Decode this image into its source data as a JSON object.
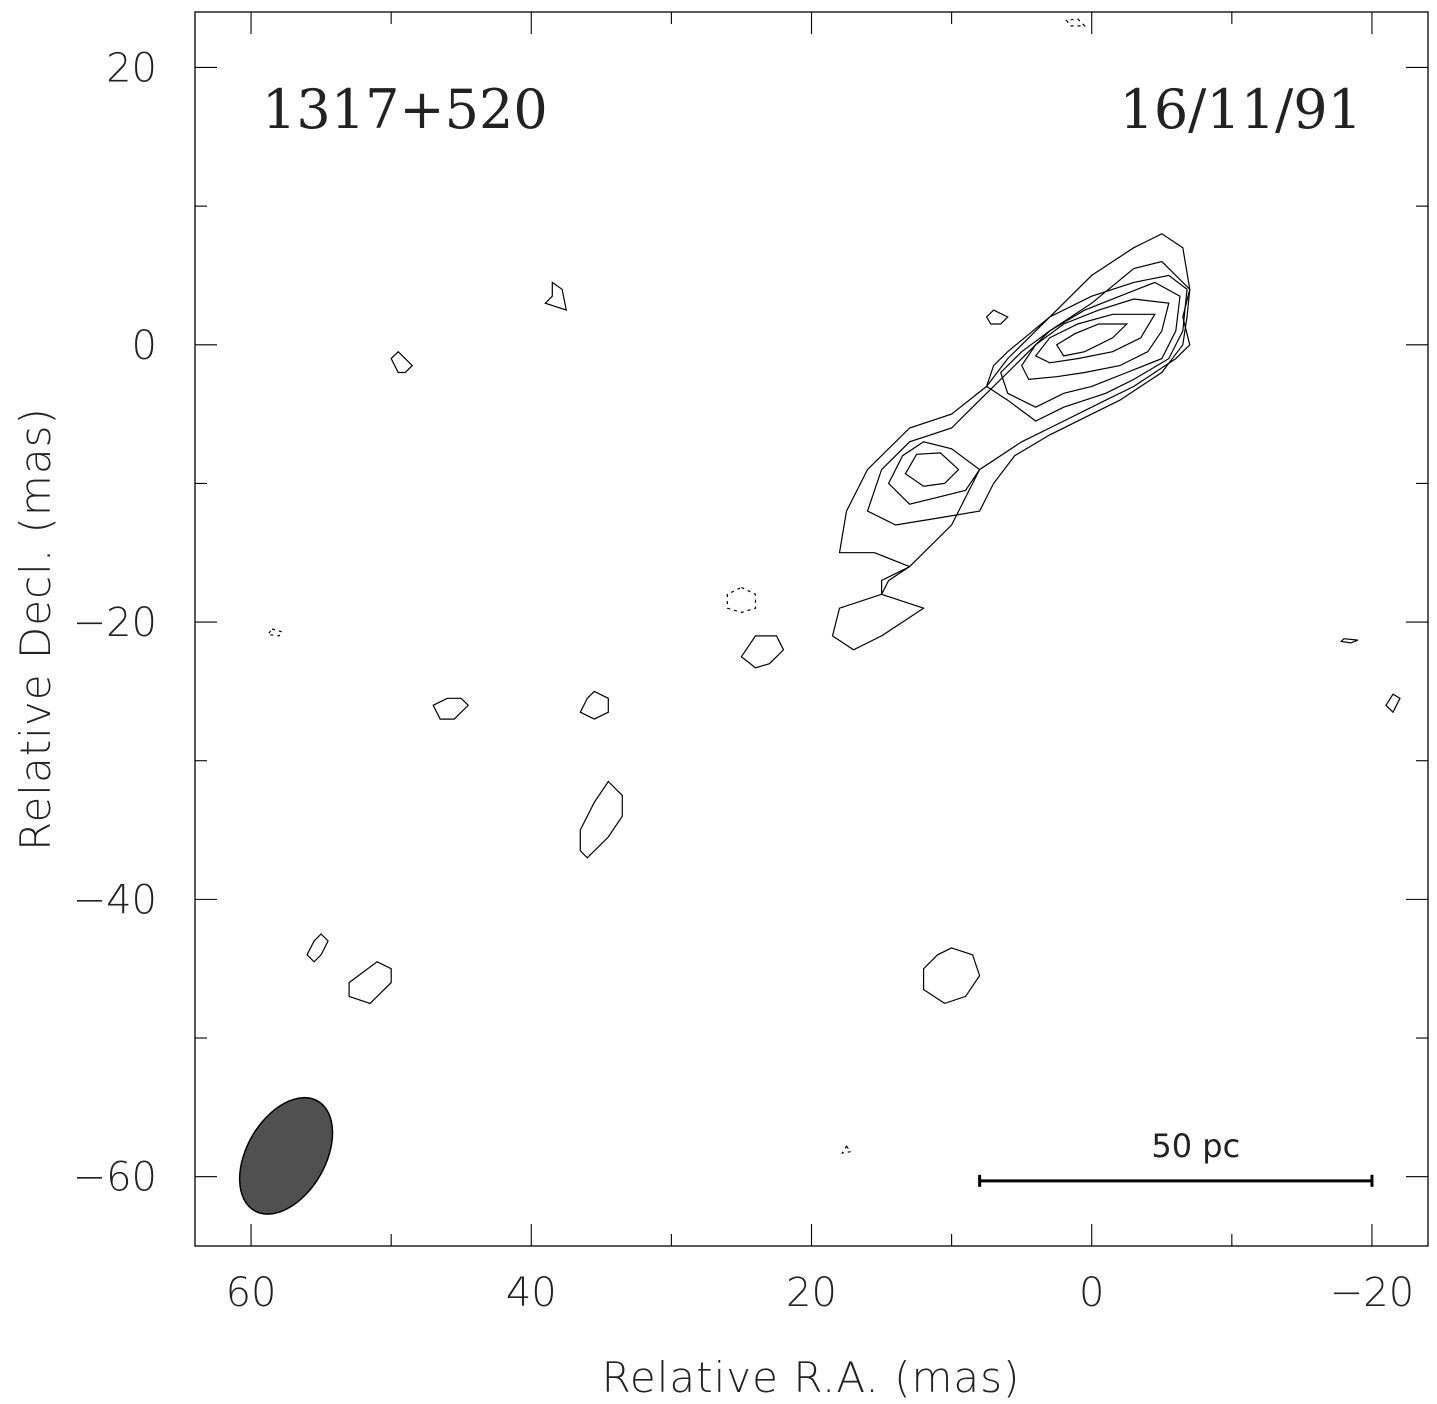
{
  "chart_data": {
    "type": "contour",
    "source_name": "1317+520",
    "epoch": "16/11/91",
    "xlabel": "Relative R.A. (mas)",
    "ylabel": "Relative Decl. (mas)",
    "xlim": [
      64,
      -24
    ],
    "ylim": [
      -65,
      24
    ],
    "x_ticks": [
      60,
      40,
      20,
      0,
      -20
    ],
    "x_tick_labels": [
      "60",
      "40",
      "20",
      "0",
      "−20"
    ],
    "y_ticks": [
      20,
      0,
      -20,
      -40,
      -60
    ],
    "y_tick_labels": [
      "20",
      "0",
      "−20",
      "−40",
      "−60"
    ],
    "x_minor_step": 10,
    "y_minor_step": 10,
    "scale_bar": {
      "label": "50 pc",
      "x_from": 8,
      "x_to": -20,
      "y": -60.3
    },
    "beam": {
      "x": 57.5,
      "y": -58.5,
      "major_mas": 7,
      "minor_mas": 3.5,
      "pa_deg": 30
    },
    "contours": [
      {
        "level": 1,
        "kind": "positive",
        "points": [
          [
            -7,
            4
          ],
          [
            -6.5,
            2
          ],
          [
            -7,
            0
          ],
          [
            -6,
            -1
          ],
          [
            -3,
            -3
          ],
          [
            -1,
            -4
          ],
          [
            3,
            -6
          ],
          [
            5,
            -7
          ],
          [
            8,
            -9
          ],
          [
            10,
            -13
          ],
          [
            13,
            -16
          ],
          [
            15,
            -17
          ],
          [
            15,
            -18
          ],
          [
            12,
            -19
          ],
          [
            15,
            -21
          ],
          [
            17,
            -22
          ],
          [
            18.5,
            -21
          ],
          [
            18,
            -19
          ],
          [
            15,
            -18
          ],
          [
            14.5,
            -17
          ],
          [
            13,
            -16
          ],
          [
            15.5,
            -15
          ],
          [
            18,
            -15
          ],
          [
            17.5,
            -12
          ],
          [
            16,
            -9
          ],
          [
            14,
            -7
          ],
          [
            13,
            -6
          ],
          [
            10,
            -5
          ],
          [
            7.5,
            -3
          ],
          [
            6,
            -1
          ],
          [
            5,
            0
          ],
          [
            2,
            3
          ],
          [
            0,
            5
          ],
          [
            -3,
            7
          ],
          [
            -5,
            8
          ],
          [
            -6.5,
            7
          ]
        ]
      },
      {
        "level": 2,
        "kind": "positive",
        "points": [
          [
            -7,
            4
          ],
          [
            -6.8,
            2
          ],
          [
            -6.5,
            0
          ],
          [
            -5,
            -2
          ],
          [
            -2,
            -4
          ],
          [
            0,
            -5
          ],
          [
            3,
            -6.5
          ],
          [
            5.5,
            -8
          ],
          [
            7,
            -10
          ],
          [
            8,
            -12
          ],
          [
            11,
            -12.5
          ],
          [
            14,
            -13
          ],
          [
            16,
            -12
          ],
          [
            15,
            -9
          ],
          [
            13,
            -7
          ],
          [
            10,
            -6
          ],
          [
            8,
            -4
          ],
          [
            6,
            -2
          ],
          [
            3,
            1
          ],
          [
            0,
            3
          ],
          [
            -3,
            5.5
          ],
          [
            -5,
            6
          ]
        ]
      },
      {
        "level": 3,
        "kind": "positive",
        "points": [
          [
            -6.8,
            4
          ],
          [
            -6.5,
            1
          ],
          [
            -5.5,
            -1
          ],
          [
            -3,
            -2.5
          ],
          [
            -1,
            -3.5
          ],
          [
            2,
            -4.5
          ],
          [
            4,
            -5.5
          ],
          [
            6,
            -4
          ],
          [
            7.5,
            -3
          ],
          [
            7,
            -1.5
          ],
          [
            6,
            -0.5
          ],
          [
            3,
            2
          ],
          [
            0,
            3.5
          ],
          [
            -3,
            4.5
          ],
          [
            -5.5,
            5
          ]
        ]
      },
      {
        "level": 3,
        "kind": "positive",
        "points": [
          [
            8,
            -9
          ],
          [
            9,
            -10.5
          ],
          [
            11,
            -11
          ],
          [
            13,
            -11.5
          ],
          [
            14.5,
            -10
          ],
          [
            13.5,
            -8
          ],
          [
            12,
            -7
          ],
          [
            10,
            -7.5
          ]
        ]
      },
      {
        "level": 4,
        "kind": "positive",
        "points": [
          [
            -6.3,
            3.5
          ],
          [
            -6,
            1
          ],
          [
            -5,
            -1
          ],
          [
            -2.5,
            -2
          ],
          [
            0,
            -3
          ],
          [
            2,
            -3.5
          ],
          [
            4,
            -4.5
          ],
          [
            6,
            -3.5
          ],
          [
            6.5,
            -2
          ],
          [
            5,
            -0.5
          ],
          [
            3,
            1
          ],
          [
            0.5,
            2.5
          ],
          [
            -2,
            3.5
          ],
          [
            -4.5,
            4.5
          ]
        ]
      },
      {
        "level": 4,
        "kind": "positive",
        "points": [
          [
            9.5,
            -9
          ],
          [
            10.5,
            -10
          ],
          [
            12,
            -10.2
          ],
          [
            13.3,
            -9.3
          ],
          [
            12.5,
            -7.9
          ],
          [
            10.8,
            -7.8
          ]
        ]
      },
      {
        "level": 5,
        "kind": "positive",
        "points": [
          [
            -5.5,
            3
          ],
          [
            -5,
            1
          ],
          [
            -4,
            -0.5
          ],
          [
            -2,
            -1.5
          ],
          [
            0.5,
            -2
          ],
          [
            2.5,
            -2.3
          ],
          [
            4.5,
            -2.5
          ],
          [
            5,
            -1.5
          ],
          [
            4,
            0
          ],
          [
            2,
            1.5
          ],
          [
            -0.5,
            2.5
          ],
          [
            -3,
            3.3
          ]
        ]
      },
      {
        "level": 6,
        "kind": "positive",
        "points": [
          [
            -4.5,
            2.2
          ],
          [
            -3.5,
            0.5
          ],
          [
            -1.5,
            -0.5
          ],
          [
            1,
            -1
          ],
          [
            3,
            -1.3
          ],
          [
            4,
            -0.8
          ],
          [
            3,
            0.5
          ],
          [
            1,
            1.5
          ],
          [
            -1.5,
            2.2
          ]
        ]
      },
      {
        "level": 7,
        "kind": "positive",
        "points": [
          [
            -2.5,
            1.5
          ],
          [
            -1.5,
            0.5
          ],
          [
            0.5,
            -0.5
          ],
          [
            2,
            -0.8
          ],
          [
            2.5,
            0
          ],
          [
            1.2,
            0.8
          ],
          [
            -0.5,
            1.5
          ]
        ]
      },
      {
        "level": 1,
        "kind": "positive",
        "points": [
          [
            38.5,
            4.5
          ],
          [
            38.5,
            3.5
          ],
          [
            39,
            3
          ],
          [
            37.5,
            2.5
          ],
          [
            37.8,
            4
          ]
        ]
      },
      {
        "level": 1,
        "kind": "positive",
        "points": [
          [
            50,
            -1
          ],
          [
            49.5,
            -0.5
          ],
          [
            49,
            -1
          ],
          [
            48.5,
            -1.5
          ],
          [
            49,
            -2
          ],
          [
            49.5,
            -2
          ]
        ]
      },
      {
        "level": 1,
        "kind": "positive",
        "points": [
          [
            7,
            2.5
          ],
          [
            7.5,
            2
          ],
          [
            7.2,
            1.5
          ],
          [
            6.5,
            1.5
          ],
          [
            6,
            2
          ]
        ]
      },
      {
        "level": 1,
        "kind": "positive",
        "points": [
          [
            24,
            -21
          ],
          [
            22.5,
            -21
          ],
          [
            22,
            -22
          ],
          [
            23,
            -23
          ],
          [
            24,
            -23.3
          ],
          [
            25,
            -22.5
          ]
        ]
      },
      {
        "level": 1,
        "kind": "positive",
        "points": [
          [
            46,
            -25.5
          ],
          [
            45,
            -25.5
          ],
          [
            44.5,
            -26
          ],
          [
            45.5,
            -27
          ],
          [
            46.5,
            -27
          ],
          [
            47,
            -26
          ]
        ]
      },
      {
        "level": 1,
        "kind": "positive",
        "points": [
          [
            35.5,
            -25
          ],
          [
            34.5,
            -25.5
          ],
          [
            34.5,
            -26.5
          ],
          [
            35.5,
            -27
          ],
          [
            36.5,
            -26.5
          ],
          [
            36,
            -25.5
          ]
        ]
      },
      {
        "level": 1,
        "kind": "positive",
        "points": [
          [
            34.5,
            -31.5
          ],
          [
            33.5,
            -32.5
          ],
          [
            33.5,
            -34
          ],
          [
            34.5,
            -35.5
          ],
          [
            36,
            -37
          ],
          [
            36.5,
            -36.5
          ],
          [
            36.5,
            -35
          ],
          [
            35.5,
            -33
          ]
        ]
      },
      {
        "level": 1,
        "kind": "positive",
        "points": [
          [
            55,
            -42.5
          ],
          [
            54.5,
            -43
          ],
          [
            55,
            -44
          ],
          [
            55.5,
            -44.5
          ],
          [
            56,
            -44
          ],
          [
            55.5,
            -43
          ]
        ]
      },
      {
        "level": 1,
        "kind": "positive",
        "points": [
          [
            51,
            -44.5
          ],
          [
            50,
            -45
          ],
          [
            50,
            -46
          ],
          [
            51.5,
            -47.5
          ],
          [
            53,
            -47
          ],
          [
            53,
            -46
          ]
        ]
      },
      {
        "level": 1,
        "kind": "positive",
        "points": [
          [
            10,
            -43.5
          ],
          [
            8.5,
            -44
          ],
          [
            8,
            -45.5
          ],
          [
            9,
            -47
          ],
          [
            10.5,
            -47.5
          ],
          [
            12,
            -46.5
          ],
          [
            12,
            -45
          ],
          [
            11,
            -44
          ]
        ]
      },
      {
        "level": 1,
        "kind": "positive",
        "points": [
          [
            -21,
            -26
          ],
          [
            -21.5,
            -26.5
          ],
          [
            -22,
            -25.5
          ],
          [
            -21.5,
            -25.2
          ]
        ]
      },
      {
        "level": 1,
        "kind": "positive",
        "points": [
          [
            -18,
            -21.2
          ],
          [
            -19,
            -21.3
          ],
          [
            -18.5,
            -21.5
          ],
          [
            -17.8,
            -21.4
          ]
        ]
      },
      {
        "level": -1,
        "kind": "negative",
        "points": [
          [
            25,
            -17.5
          ],
          [
            24,
            -18
          ],
          [
            24,
            -19
          ],
          [
            25,
            -19.3
          ],
          [
            26,
            -19
          ],
          [
            26,
            -18
          ]
        ]
      },
      {
        "level": -1,
        "kind": "negative",
        "points": [
          [
            58.5,
            -20.5
          ],
          [
            57.8,
            -20.7
          ],
          [
            58,
            -21
          ],
          [
            58.8,
            -20.9
          ]
        ]
      },
      {
        "level": -1,
        "kind": "negative",
        "points": [
          [
            17.5,
            -57.8
          ],
          [
            17.2,
            -58.2
          ],
          [
            17.8,
            -58.3
          ]
        ]
      },
      {
        "level": -1,
        "kind": "negative",
        "points": [
          [
            1,
            23.5
          ],
          [
            0.5,
            23
          ],
          [
            1.5,
            23
          ],
          [
            1.8,
            23.4
          ]
        ]
      }
    ]
  }
}
